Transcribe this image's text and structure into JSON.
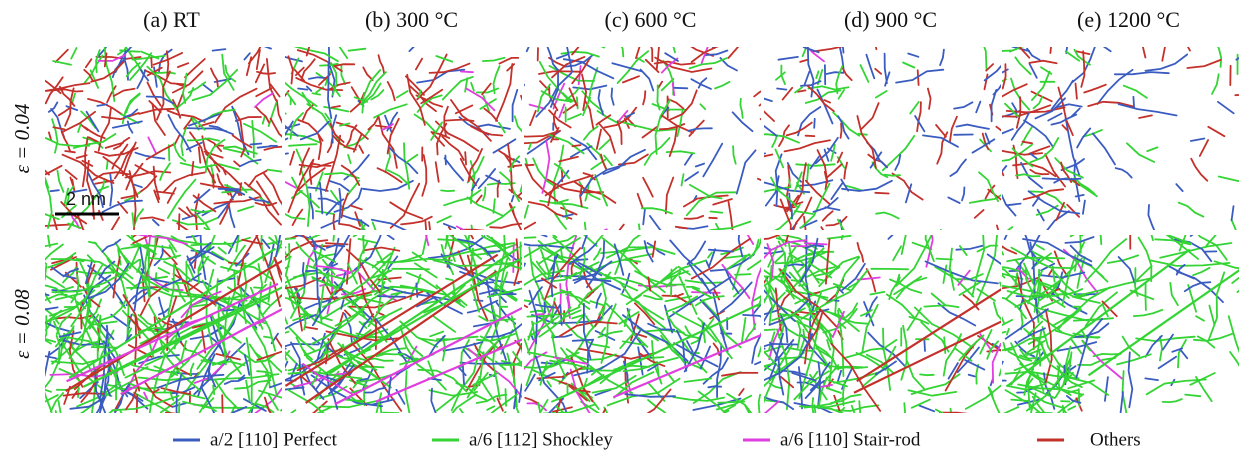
{
  "columns": [
    "(a) RT",
    "(b) 300 °C",
    "(c) 600 °C",
    "(d) 900 °C",
    "(e) 1200 °C"
  ],
  "rows": [
    "ε = 0.04",
    "ε = 0.08"
  ],
  "scale_bar": "2 nm",
  "legend": [
    {
      "label": "a/2 [110] Perfect",
      "color": "#3a5cc0"
    },
    {
      "label": "a/6 [112] Shockley",
      "color": "#33d433"
    },
    {
      "label": "a/6 [110] Stair-rod",
      "color": "#e03ee0"
    },
    {
      "label": "Others",
      "color": "#c4302a"
    }
  ]
}
